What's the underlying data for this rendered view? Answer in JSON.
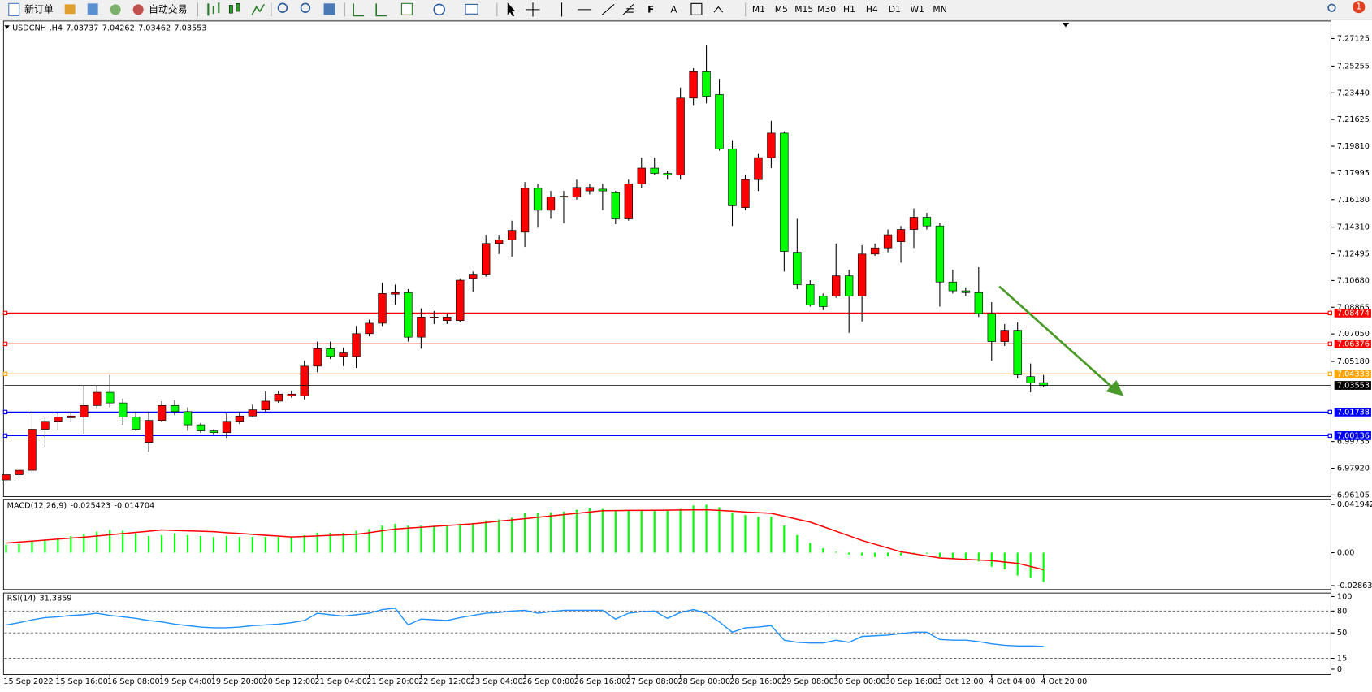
{
  "toolbar": {
    "new_order": "新订单",
    "auto_trading": "自动交易",
    "text_tool": "A",
    "timeframes": [
      "M1",
      "M5",
      "M15",
      "M30",
      "H1",
      "H4",
      "D1",
      "W1",
      "MN"
    ],
    "notification_count": 1
  },
  "chart_data": [
    {
      "type": "candlestick",
      "title": "USDCNH-,H4",
      "categories": [
        "15 Sep 2022",
        null,
        null,
        null,
        "15 Sep 16:00",
        null,
        null,
        null,
        "16 Sep 08:00",
        null,
        null,
        null,
        "19 Sep 04:00",
        null,
        null,
        null,
        "19 Sep 20:00",
        null,
        null,
        null,
        "20 Sep 12:00",
        null,
        null,
        null,
        "21 Sep 04:00",
        null,
        null,
        null,
        "21 Sep 20:00",
        null,
        null,
        null,
        "22 Sep 12:00",
        null,
        null,
        null,
        "23 Sep 04:00",
        null,
        null,
        null,
        "26 Sep 00:00",
        null,
        null,
        null,
        "26 Sep 16:00",
        null,
        null,
        null,
        "27 Sep 08:00",
        null,
        null,
        null,
        "28 Sep 00:00",
        null,
        null,
        null,
        "28 Sep 16:00",
        null,
        null,
        null,
        "29 Sep 08:00",
        null,
        null,
        null,
        "30 Sep 00:00",
        null,
        null,
        null,
        "30 Sep 16:00",
        null,
        null,
        null,
        "3 Oct 12:00",
        null,
        null,
        null,
        "4 Oct 04:00",
        null,
        null,
        null,
        "4 Oct 20:00"
      ],
      "series": [
        {
          "open": [
            6.9712,
            6.9748,
            6.9778,
            7.0057,
            7.0111,
            7.0135,
            7.0141,
            7.0218,
            7.0308,
            7.0236,
            7.0141,
            6.9968,
            7.0117,
            7.0218,
            7.0177,
            7.0087,
            7.0046,
            7.0034,
            7.0111,
            7.0147,
            7.0189,
            7.0248,
            7.0284,
            7.0284,
            7.0486,
            7.0605,
            7.0552,
            7.0552,
            7.0707,
            7.0778,
            7.0975,
            7.0986,
            7.0683,
            7.0814,
            7.0796,
            7.0796,
            7.1082,
            7.1111,
            7.132,
            7.1344,
            7.1397,
            7.1695,
            7.1546,
            7.1635,
            7.1635,
            7.1677,
            7.1689,
            7.1665,
            7.1487,
            7.1725,
            7.1832,
            7.1796,
            7.1784,
            7.2308,
            7.2487,
            7.2332,
            7.1963,
            7.1564,
            7.1754,
            7.1903,
            7.207,
            7.126,
            7.104,
            7.0963,
            7.0963,
            7.11,
            7.0963,
            7.1248,
            7.129,
            7.1332,
            7.1415,
            7.1498,
            7.1439,
            7.1058,
            7.0998,
            7.0986,
            7.0844,
            7.0653,
            7.073,
            7.0415,
            7.03737
          ],
          "high": [
            6.976,
            6.979,
            7.0177,
            7.0135,
            7.0165,
            7.0177,
            7.0355,
            7.0355,
            7.0427,
            7.0266,
            7.0177,
            7.0177,
            7.0248,
            7.0254,
            7.0206,
            7.0099,
            7.0057,
            7.0165,
            7.0177,
            7.0224,
            7.0314,
            7.032,
            7.032,
            7.0522,
            7.0653,
            7.0653,
            7.0611,
            7.076,
            7.0802,
            7.1052,
            7.104,
            7.101,
            7.0879,
            7.0861,
            7.0844,
            7.1082,
            7.1129,
            7.1379,
            7.1379,
            7.1475,
            7.1737,
            7.1725,
            7.1677,
            7.1677,
            7.1754,
            7.1725,
            7.1725,
            7.1677,
            7.1754,
            7.1903,
            7.1903,
            7.1814,
            7.238,
            7.2511,
            7.2665,
            7.2439,
            7.2022,
            7.1784,
            7.1933,
            7.2153,
            7.2082,
            7.1487,
            7.107,
            7.098,
            7.132,
            7.1141,
            7.1308,
            7.132,
            7.1415,
            7.1439,
            7.1558,
            7.1528,
            7.1457,
            7.1141,
            7.1022,
            7.1159,
            7.0921,
            7.0772,
            7.0784,
            7.0504,
            7.04262
          ],
          "low": [
            6.97,
            6.9724,
            6.976,
            6.9938,
            7.0057,
            7.0105,
            7.0028,
            7.02,
            7.0206,
            7.0087,
            7.0046,
            6.9903,
            7.0105,
            7.0153,
            7.0046,
            7.0034,
            7.0022,
            6.9998,
            7.0093,
            7.0141,
            7.0177,
            7.0236,
            7.0272,
            7.026,
            7.0445,
            7.0534,
            7.0486,
            7.0474,
            7.0689,
            7.076,
            7.0903,
            7.0653,
            7.0605,
            7.0772,
            7.0772,
            7.0784,
            7.0992,
            7.1094,
            7.1248,
            7.1231,
            7.1296,
            7.1427,
            7.1487,
            7.1457,
            7.1618,
            7.1653,
            7.1546,
            7.1451,
            7.1475,
            7.1695,
            7.1784,
            7.1754,
            7.1754,
            7.2261,
            7.2272,
            7.1951,
            7.1439,
            7.1546,
            7.1677,
            7.1832,
            7.1129,
            7.101,
            7.0891,
            7.0867,
            7.0951,
            7.0713,
            7.079,
            7.1236,
            7.126,
            7.1189,
            7.129,
            7.1415,
            7.0891,
            7.098,
            7.0963,
            7.082,
            7.0522,
            7.0623,
            7.0403,
            7.0308,
            7.03462
          ],
          "close": [
            6.9748,
            6.9778,
            7.0057,
            7.0111,
            7.0141,
            7.0147,
            7.0218,
            7.0308,
            7.0236,
            7.0141,
            7.0057,
            7.0117,
            7.0218,
            7.0177,
            7.0087,
            7.0046,
            7.0034,
            7.0111,
            7.0147,
            7.0189,
            7.0248,
            7.0296,
            7.0296,
            7.0486,
            7.0605,
            7.0552,
            7.0576,
            7.0707,
            7.0778,
            7.098,
            7.0986,
            7.0683,
            7.082,
            7.082,
            7.082,
            7.107,
            7.1111,
            7.132,
            7.1344,
            7.1409,
            7.1695,
            7.1546,
            7.1635,
            7.1641,
            7.1701,
            7.1701,
            7.1677,
            7.1487,
            7.1725,
            7.1832,
            7.1796,
            7.1784,
            7.2308,
            7.2487,
            7.232,
            7.1963,
            7.1576,
            7.1754,
            7.1903,
            7.207,
            7.1266,
            7.104,
            7.0903,
            7.0891,
            7.11,
            7.0963,
            7.1248,
            7.129,
            7.1379,
            7.1415,
            7.1498,
            7.1439,
            7.1058,
            7.0998,
            7.0986,
            7.0844,
            7.0653,
            7.073,
            7.0427,
            7.0373,
            7.03553
          ]
        }
      ],
      "up_color": "#ff0000",
      "down_color": "#00ff00",
      "ylim": [
        6.9599,
        7.2832
      ],
      "yticks": [
        7.27125,
        7.25255,
        {
          "value": 7.2344,
          "label": "7.23440"
        },
        7.21625,
        {
          "value": 7.1981,
          "label": "7.19810"
        },
        7.17995,
        {
          "value": 7.1618,
          "label": "7.16180"
        },
        {
          "value": 7.1431,
          "label": "7.14310"
        },
        7.12495,
        {
          "value": 7.1068,
          "label": "7.10680"
        },
        7.08865,
        {
          "value": 7.0705,
          "label": "7.07050"
        },
        {
          "value": 7.0518,
          "label": "7.05180"
        },
        6.99735,
        {
          "value": 6.9792,
          "label": "6.97920"
        },
        6.96105
      ],
      "levels": [
        {
          "value": 7.08474,
          "color": "#ff0000"
        },
        {
          "value": 7.06376,
          "color": "#ff0000"
        },
        {
          "value": 7.04333,
          "color": "#ffa500"
        },
        {
          "value": 7.01738,
          "color": "#0000ff"
        },
        {
          "value": 7.00136,
          "color": "#0000ff"
        }
      ]
    },
    {
      "type": "macd",
      "title": "MACD(12,26,9)",
      "series": [
        {
          "color": "#00ff00",
          "values": [
            0.0069,
            0.0076,
            0.0099,
            0.0114,
            0.013,
            0.0145,
            0.016,
            0.0183,
            0.0198,
            0.0191,
            0.0168,
            0.0145,
            0.0153,
            0.0168,
            0.0153,
            0.0145,
            0.0137,
            0.0145,
            0.0137,
            0.0137,
            0.0137,
            0.0137,
            0.0137,
            0.0153,
            0.0175,
            0.0175,
            0.0175,
            0.0191,
            0.0206,
            0.0236,
            0.0252,
            0.0236,
            0.0236,
            0.0236,
            0.0236,
            0.0252,
            0.0259,
            0.0282,
            0.029,
            0.0305,
            0.0343,
            0.0343,
            0.0351,
            0.0358,
            0.0374,
            0.0389,
            0.0381,
            0.0366,
            0.0366,
            0.0374,
            0.0374,
            0.0366,
            0.0381,
            0.0412,
            0.0419,
            0.0397,
            0.0351,
            0.0328,
            0.0313,
            0.0313,
            0.0236,
            0.0153,
            0.0084,
            0.0038,
            0.0008,
            -0.0015,
            -0.0023,
            -0.0038,
            -0.0031,
            -0.0023,
            -0.0008,
            -0.0008,
            -0.0038,
            -0.0053,
            -0.0061,
            -0.0076,
            -0.0122,
            -0.0145,
            -0.0198,
            -0.0221,
            -0.025423
          ]
        },
        {
          "color": "#ff0000",
          "values": [
            0.0084,
            0.0093,
            0.0101,
            0.011,
            0.0119,
            0.0127,
            0.0136,
            0.0145,
            0.0156,
            0.0166,
            0.0177,
            0.0187,
            0.0198,
            0.0194,
            0.019,
            0.0187,
            0.0183,
            0.0175,
            0.0168,
            0.016,
            0.0152,
            0.0145,
            0.0137,
            0.0142,
            0.0146,
            0.0151,
            0.0155,
            0.016,
            0.0175,
            0.0191,
            0.0206,
            0.0214,
            0.0221,
            0.0229,
            0.0237,
            0.0244,
            0.0252,
            0.0263,
            0.0275,
            0.0286,
            0.0297,
            0.0309,
            0.032,
            0.0332,
            0.0343,
            0.0355,
            0.0366,
            0.0367,
            0.0368,
            0.0369,
            0.037,
            0.0371,
            0.0372,
            0.0373,
            0.0374,
            0.0368,
            0.0362,
            0.0355,
            0.0349,
            0.0343,
            0.0318,
            0.0292,
            0.0267,
            0.0227,
            0.0187,
            0.0147,
            0.0107,
            0.0074,
            0.0041,
            0.0008,
            -0.001,
            -0.0028,
            -0.0046,
            -0.0052,
            -0.0058,
            -0.0063,
            -0.0069,
            -0.0081,
            -0.0092,
            -0.012,
            -0.014704
          ]
        }
      ],
      "ylim": [
        -0.03203,
        0.04652
      ],
      "yticks": [
        0.041942,
        {
          "value": 0,
          "label": "0.00"
        },
        -0.028631
      ]
    },
    {
      "type": "line",
      "title": "RSI(14)",
      "color": "#1e90ff",
      "values": [
        61,
        64,
        68,
        71,
        72,
        74,
        75,
        77,
        74,
        72,
        70,
        67,
        65,
        62,
        60,
        58,
        57,
        57,
        58,
        60,
        61,
        62,
        64,
        67,
        77,
        75,
        73,
        75,
        77,
        82,
        84,
        61,
        69,
        68,
        67,
        71,
        74,
        77,
        78,
        80,
        81,
        77,
        79,
        81,
        81,
        81,
        81,
        69,
        77,
        79,
        80,
        70,
        78,
        82,
        77,
        65,
        51,
        57,
        58,
        60,
        40,
        37,
        36,
        36,
        40,
        37,
        45,
        46,
        47,
        49,
        51,
        51,
        41,
        40,
        40,
        38,
        35,
        33,
        32,
        32,
        31.3859
      ],
      "ylim": [
        0,
        100
      ],
      "yticks": [
        100,
        80,
        50,
        15,
        0
      ]
    }
  ]
}
